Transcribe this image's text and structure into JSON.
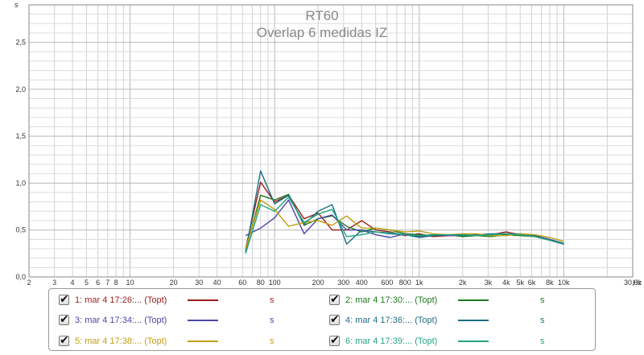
{
  "chart_data": {
    "type": "line",
    "title": "RT60",
    "subtitle": "Overlap 6 medidas IZ",
    "ylabel": "s",
    "xlabel_unit": "Hz",
    "xscale": "log",
    "xlim": [
      2,
      30000
    ],
    "ylim": [
      0,
      2.9
    ],
    "grid": true,
    "y_ticks": [
      0.0,
      0.5,
      1.0,
      1.5,
      2.0,
      2.5
    ],
    "y_tick_labels": [
      "0,0",
      "0,5",
      "1,0",
      "1,5",
      "2,0",
      "2,5"
    ],
    "x_ticks": [
      2,
      3,
      4,
      5,
      6,
      7,
      8,
      10,
      20,
      30,
      40,
      60,
      80,
      100,
      200,
      300,
      400,
      600,
      800,
      1000,
      2000,
      3000,
      4000,
      5000,
      6000,
      8000,
      10000,
      30000
    ],
    "x_tick_labels": [
      "2",
      "3",
      "4",
      "5",
      "6",
      "7",
      "8",
      "10",
      "20",
      "30",
      "40",
      "60",
      "80",
      "100",
      "200",
      "300",
      "400",
      "600",
      "800",
      "1k",
      "2k",
      "3k",
      "4k",
      "5k",
      "6k",
      "8k",
      "10k",
      "30,0k"
    ],
    "x": [
      63,
      80,
      100,
      125,
      160,
      200,
      250,
      315,
      400,
      500,
      630,
      800,
      1000,
      1250,
      1600,
      2000,
      2500,
      3150,
      4000,
      5000,
      6300,
      8000,
      10000
    ],
    "series": [
      {
        "name": "1: mar 4 17:26:... (Topt)",
        "unit": "s",
        "color": "#9c1c1c",
        "values": [
          0.3,
          1.01,
          0.8,
          0.87,
          0.62,
          0.68,
          0.5,
          0.5,
          0.6,
          0.5,
          0.48,
          0.44,
          0.46,
          0.43,
          0.44,
          0.44,
          0.45,
          0.45,
          0.48,
          0.45,
          0.44,
          0.4,
          0.36
        ]
      },
      {
        "name": "2: mar 4 17:30:... (Topt)",
        "unit": "s",
        "color": "#1e7a1e",
        "values": [
          0.28,
          0.87,
          0.82,
          0.88,
          0.55,
          0.62,
          0.65,
          0.54,
          0.48,
          0.52,
          0.5,
          0.46,
          0.45,
          0.44,
          0.45,
          0.43,
          0.44,
          0.43,
          0.45,
          0.44,
          0.43,
          0.39,
          0.35
        ]
      },
      {
        "name": "3: mar 4 17:34:... (Topt)",
        "unit": "s",
        "color": "#4b47a6",
        "values": [
          0.44,
          0.52,
          0.63,
          0.82,
          0.46,
          0.62,
          0.66,
          0.5,
          0.5,
          0.45,
          0.42,
          0.46,
          0.43,
          0.45,
          0.44,
          0.45,
          0.44,
          0.45,
          0.46,
          0.45,
          0.44,
          0.4,
          0.36
        ]
      },
      {
        "name": "4: mar 4 17:36:... (Topt)",
        "unit": "s",
        "color": "#1d6e82",
        "values": [
          0.26,
          1.13,
          0.78,
          0.87,
          0.56,
          0.7,
          0.77,
          0.35,
          0.5,
          0.48,
          0.46,
          0.45,
          0.42,
          0.44,
          0.45,
          0.44,
          0.45,
          0.46,
          0.46,
          0.46,
          0.44,
          0.39,
          0.35
        ]
      },
      {
        "name": "5: mar 4 17:38:... (Topt)",
        "unit": "s",
        "color": "#c0a010",
        "values": [
          0.3,
          0.82,
          0.72,
          0.54,
          0.58,
          0.6,
          0.55,
          0.65,
          0.52,
          0.52,
          0.5,
          0.48,
          0.49,
          0.46,
          0.45,
          0.46,
          0.46,
          0.44,
          0.44,
          0.46,
          0.45,
          0.42,
          0.38
        ]
      },
      {
        "name": "6: mar 4 17:39:... (Topt)",
        "unit": "s",
        "color": "#22a580",
        "values": [
          0.25,
          0.77,
          0.7,
          0.85,
          0.58,
          0.67,
          0.72,
          0.43,
          0.45,
          0.48,
          0.47,
          0.45,
          0.44,
          0.45,
          0.45,
          0.45,
          0.44,
          0.45,
          0.46,
          0.45,
          0.43,
          0.39,
          0.36
        ]
      }
    ]
  }
}
